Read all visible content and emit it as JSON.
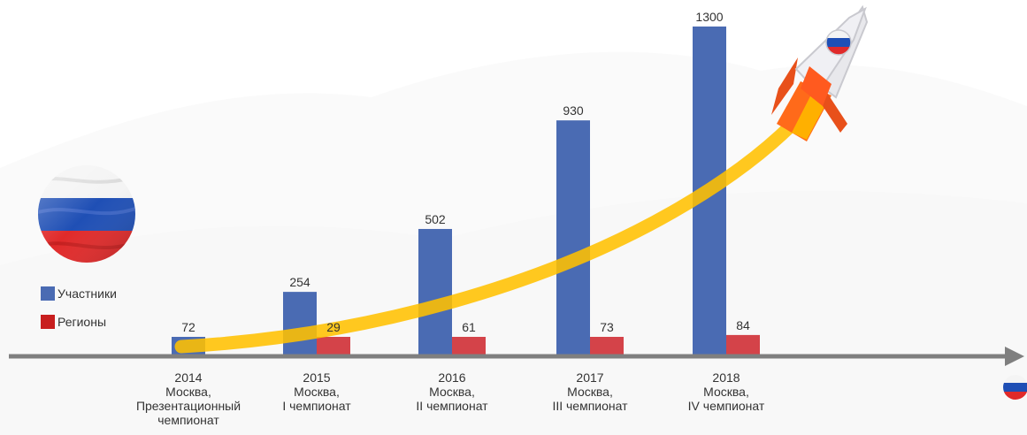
{
  "colors": {
    "participants": "#4a6bb3",
    "regions": "#d0333a",
    "axis": "#7f7f7f",
    "curve": "#ffc000"
  },
  "icons": [
    "russia-flag-circle-icon",
    "rocket-icon",
    "small-russia-flag-icon"
  ],
  "chart_data": {
    "type": "bar",
    "categories": [
      "2014",
      "2015",
      "2016",
      "2017",
      "2018"
    ],
    "category_labels": [
      {
        "year": "2014",
        "city": "Москва,",
        "event_lines": [
          "Презентационный",
          "чемпионат"
        ]
      },
      {
        "year": "2015",
        "city": "Москва,",
        "event_lines": [
          "I чемпионат"
        ]
      },
      {
        "year": "2016",
        "city": "Москва,",
        "event_lines": [
          "II чемпионат"
        ]
      },
      {
        "year": "2017",
        "city": "Москва,",
        "event_lines": [
          "III чемпионат"
        ]
      },
      {
        "year": "2018",
        "city": "Москва,",
        "event_lines": [
          "IV чемпионат"
        ]
      }
    ],
    "series": [
      {
        "name": "Участники",
        "values": [
          72,
          254,
          502,
          930,
          1300
        ],
        "labels": [
          "72",
          "254",
          "502",
          "930",
          "1300"
        ]
      },
      {
        "name": "Регионы",
        "values": [
          null,
          29,
          61,
          73,
          84
        ],
        "labels": [
          "",
          "29",
          "61",
          "73",
          "84"
        ]
      }
    ],
    "legend": [
      "Участники",
      "Регионы"
    ],
    "legend_position": "left",
    "grid": false
  }
}
